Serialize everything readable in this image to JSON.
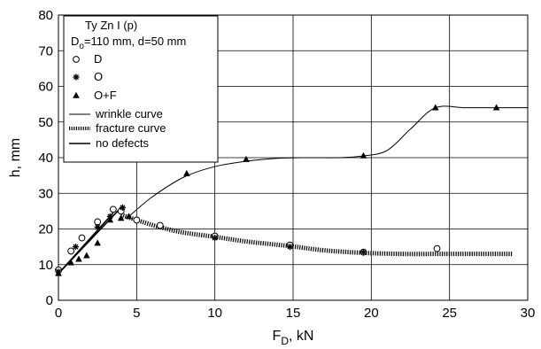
{
  "chart_data": {
    "type": "scatter",
    "title": "",
    "xlabel": {
      "main": "F",
      "sub": "D",
      "rest": ", kN"
    },
    "ylabel": "h,  mm",
    "xlim": [
      0,
      30
    ],
    "ylim": [
      0,
      80
    ],
    "xticks": [
      0,
      5,
      10,
      15,
      20,
      25,
      30
    ],
    "yticks": [
      0,
      10,
      20,
      30,
      40,
      50,
      60,
      70,
      80
    ],
    "grid": true,
    "legend_position": "top-left",
    "legend": {
      "title": "Ty Zn I (p)",
      "dims": {
        "d_main": "D",
        "d_sub": "o",
        "rest": "=110 mm, d=50 mm"
      },
      "entries": [
        {
          "label": "D",
          "symbol": "circle"
        },
        {
          "label": "O",
          "symbol": "star"
        },
        {
          "label": "O+F",
          "symbol": "triangle"
        },
        {
          "label": "wrinkle curve",
          "symbol": "thin-line"
        },
        {
          "label": "fracture curve",
          "symbol": "hatched-line"
        },
        {
          "label": "no defects",
          "symbol": "thick-line"
        }
      ]
    },
    "series": [
      {
        "name": "D",
        "marker": "circle",
        "x": [
          0.0,
          0.8,
          1.5,
          2.5,
          3.5,
          4.0,
          5.0,
          6.5,
          10.0,
          14.8,
          19.5,
          24.2
        ],
        "y": [
          8.5,
          13.8,
          17.5,
          22.0,
          25.5,
          25.0,
          22.5,
          21.0,
          18.0,
          15.5,
          13.5,
          14.5
        ]
      },
      {
        "name": "O",
        "marker": "star",
        "x": [
          0.0,
          1.1,
          2.5,
          3.3,
          4.1,
          10.0,
          14.8,
          19.5
        ],
        "y": [
          8.0,
          15.0,
          20.5,
          23.5,
          26.0,
          17.5,
          15.0,
          13.5
        ]
      },
      {
        "name": "O+F",
        "marker": "triangle",
        "x": [
          0.0,
          0.8,
          1.3,
          1.8,
          2.5,
          3.3,
          4.0,
          4.5,
          8.2,
          12.0,
          19.5,
          24.1,
          28.0
        ],
        "y": [
          7.5,
          10.5,
          11.5,
          12.5,
          16.0,
          22.5,
          23.0,
          23.5,
          35.5,
          39.5,
          40.5,
          54.0,
          54.0
        ]
      }
    ],
    "curves": [
      {
        "name": "no defects",
        "style": "thick-line",
        "segments": [
          {
            "x": [
              0.0,
              4.0
            ],
            "y": [
              7.5,
              26.0
            ]
          },
          {
            "x": [
              0.0,
              3.5
            ],
            "y": [
              7.5,
              24.5
            ]
          }
        ]
      },
      {
        "name": "wrinkle curve",
        "style": "thin-line",
        "x": [
          4.5,
          6.0,
          8.0,
          10.0,
          12.0,
          14.0,
          16.0,
          18.0,
          19.5,
          21.0,
          22.5,
          24.1,
          26.0,
          28.0,
          30.0
        ],
        "y": [
          23.5,
          29.0,
          34.5,
          37.5,
          39.0,
          39.8,
          40.0,
          40.0,
          40.5,
          42.0,
          48.0,
          54.0,
          54.0,
          54.0,
          54.0
        ]
      },
      {
        "name": "fracture curve",
        "style": "hatched-line",
        "x": [
          4.0,
          5.0,
          6.5,
          8.0,
          10.0,
          12.0,
          14.8,
          17.0,
          19.5,
          22.0,
          24.0,
          26.0,
          29.0
        ],
        "y": [
          24.0,
          22.5,
          20.5,
          19.0,
          17.8,
          16.5,
          15.2,
          14.0,
          13.3,
          13.0,
          13.0,
          13.0,
          13.0
        ]
      }
    ]
  }
}
